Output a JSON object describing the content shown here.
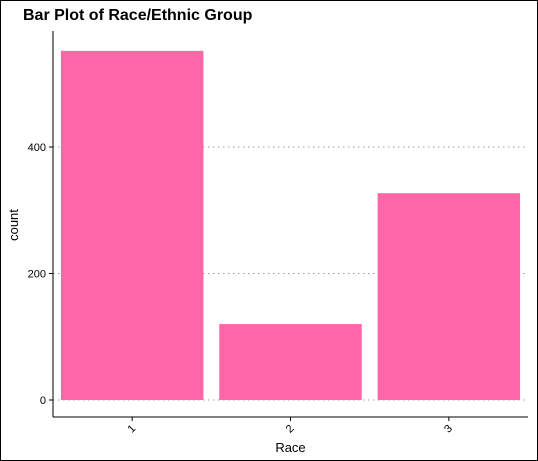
{
  "chart_data": {
    "type": "bar",
    "title": "Bar Plot of Race/Ethnic Group",
    "xlabel": "Race",
    "ylabel": "count",
    "categories": [
      "1",
      "2",
      "3"
    ],
    "values": [
      552,
      120,
      327
    ],
    "ylim": [
      0,
      552
    ],
    "yticks": [
      0,
      200,
      400
    ],
    "bar_color": "#ff66a8",
    "gridlines": "horizontal dotted at y ticks",
    "legend": "none"
  }
}
